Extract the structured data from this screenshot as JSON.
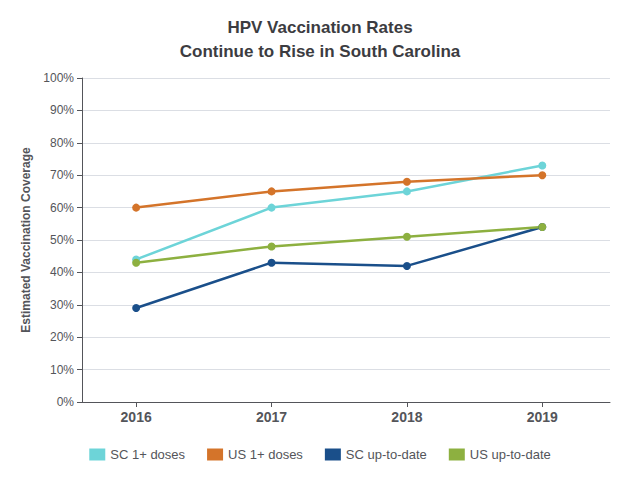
{
  "chart_data": {
    "type": "line",
    "title": "HPV Vaccination Rates\nContinue to Rise in South Carolina",
    "y_label": "Estimated Vaccination Coverage",
    "x": [
      2016,
      2017,
      2018,
      2019
    ],
    "xlim": [
      2015.6,
      2019.5
    ],
    "xticks": [
      2016,
      2017,
      2018,
      2019
    ],
    "ylim": [
      0,
      100
    ],
    "yticks": [
      {
        "value": 0,
        "label": "0%"
      },
      {
        "value": 10,
        "label": "10%"
      },
      {
        "value": 20,
        "label": "20%"
      },
      {
        "value": 30,
        "label": "30%"
      },
      {
        "value": 40,
        "label": "40%"
      },
      {
        "value": 50,
        "label": "50%"
      },
      {
        "value": 60,
        "label": "60%"
      },
      {
        "value": 70,
        "label": "70%"
      },
      {
        "value": 80,
        "label": "80%"
      },
      {
        "value": 90,
        "label": "90%"
      },
      {
        "value": 100,
        "label": "100%"
      }
    ],
    "grid": true,
    "legend": "bottom",
    "marker": "circle",
    "series": [
      {
        "name": "SC 1+ doses",
        "color": "#6DD4D8",
        "values": [
          44,
          60,
          65,
          73
        ]
      },
      {
        "name": "US 1+ doses",
        "color": "#D4742A",
        "values": [
          60,
          65,
          68,
          70
        ]
      },
      {
        "name": "SC up-to-date",
        "color": "#1A4F8A",
        "values": [
          29,
          43,
          42,
          54
        ]
      },
      {
        "name": "US up-to-date",
        "color": "#8DB040",
        "values": [
          43,
          48,
          51,
          54
        ]
      }
    ]
  }
}
